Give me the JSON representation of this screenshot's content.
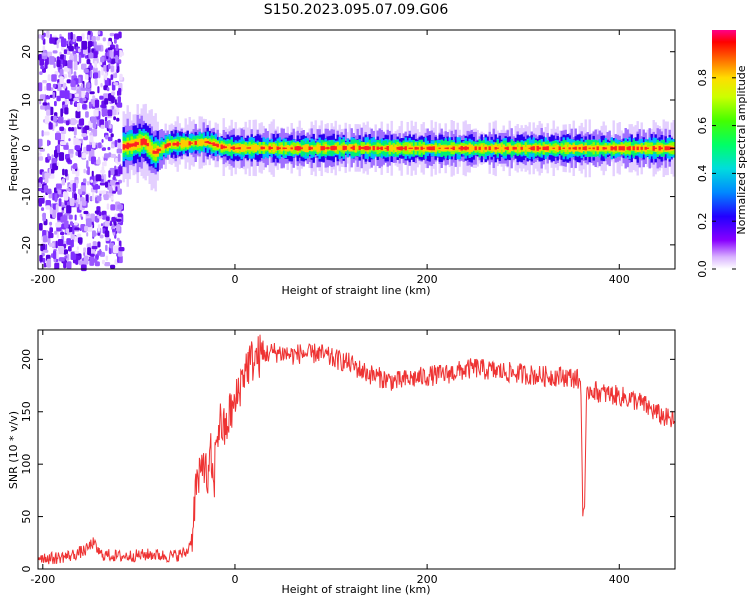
{
  "title": "S150.2023.095.07.09.G06",
  "chart_data": [
    {
      "type": "heatmap",
      "xlabel": "Height of straight line (km)",
      "ylabel": "Frequency (Hz)",
      "xlim": [
        -205,
        458
      ],
      "ylim": [
        -25,
        24.5
      ],
      "xticks": [
        "-200",
        "0",
        "200",
        "400"
      ],
      "xtick_values": [
        -200,
        0,
        200,
        400
      ],
      "yticks": [
        "-20",
        "-10",
        "0",
        "10",
        "20"
      ],
      "ytick_values": [
        -20,
        -10,
        0,
        10,
        20
      ],
      "grid": false,
      "colorbar": {
        "label": "Normalized spectral amplitude",
        "ticks": [
          "0.0",
          "0.2",
          "0.4",
          "0.6",
          "0.8"
        ],
        "tick_values": [
          0,
          0.2,
          0.4,
          0.6,
          0.8
        ],
        "range": [
          0,
          1
        ]
      },
      "features": {
        "broadband_noise_x_range": [
          -205,
          -117
        ],
        "signal_x_range": [
          -117,
          458
        ],
        "signal_center_frequency_by_x": {
          "x": [
            -117,
            -105,
            -95,
            -85,
            -70,
            -50,
            -30,
            -15,
            0,
            20,
            50,
            80,
            120,
            150,
            200,
            250,
            300,
            350,
            400,
            458
          ],
          "y": [
            0.3,
            0.8,
            1.5,
            -1.0,
            0.8,
            1.0,
            1.3,
            0.3,
            0.0,
            0.1,
            0.0,
            0.0,
            0.1,
            0.0,
            0.0,
            0.0,
            0.0,
            0.0,
            0.0,
            0.0
          ]
        }
      }
    },
    {
      "type": "line",
      "xlabel": "Height of straight line (km)",
      "ylabel": "SNR (10 * v/v)",
      "xlim": [
        -205,
        458
      ],
      "ylim": [
        0,
        228
      ],
      "xticks": [
        "-200",
        "0",
        "200",
        "400"
      ],
      "xtick_values": [
        -200,
        0,
        200,
        400
      ],
      "yticks": [
        "0",
        "50",
        "100",
        "150",
        "200"
      ],
      "ytick_values": [
        0,
        50,
        100,
        150,
        200
      ],
      "grid": false,
      "line_color": "#ee3333",
      "series": [
        {
          "x": [
            -205,
            -190,
            -170,
            -155,
            -148,
            -140,
            -120,
            -100,
            -85,
            -70,
            -60,
            -50,
            -45,
            -42,
            -40,
            -38,
            -35,
            -33,
            -30,
            -28,
            -25,
            -22,
            -20,
            -15,
            -10,
            -5,
            0,
            5,
            10,
            15,
            20,
            25,
            30,
            40,
            50,
            60,
            70,
            80,
            85,
            90,
            100,
            110,
            120,
            130,
            140,
            150,
            160,
            170,
            180,
            200,
            220,
            240,
            250,
            260,
            280,
            300,
            320,
            340,
            355,
            360,
            362,
            364,
            366,
            368,
            370,
            380,
            400,
            420,
            440,
            458
          ],
          "y": [
            12,
            10,
            13,
            18,
            25,
            14,
            12,
            13,
            14,
            12,
            13,
            16,
            30,
            65,
            85,
            80,
            92,
            110,
            90,
            80,
            110,
            70,
            125,
            140,
            130,
            150,
            155,
            175,
            190,
            197,
            200,
            203,
            205,
            207,
            206,
            204,
            206,
            204,
            207,
            205,
            201,
            199,
            196,
            190,
            186,
            183,
            180,
            179,
            181,
            184,
            186,
            190,
            192,
            190,
            188,
            186,
            184,
            184,
            182,
            178,
            55,
            60,
            168,
            170,
            172,
            168,
            165,
            160,
            148,
            140
          ]
        }
      ]
    }
  ]
}
